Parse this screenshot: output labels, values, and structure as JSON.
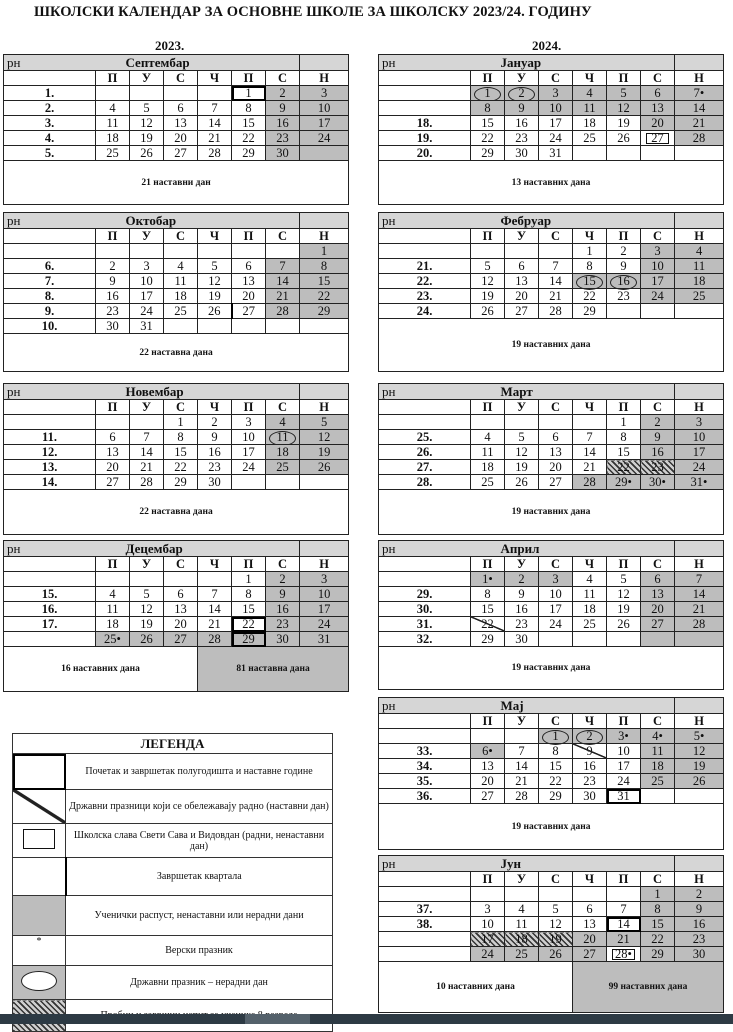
{
  "title": "ШКОЛСКИ КАЛЕНДАР ЗА ОСНОВНЕ ШКОЛЕ ЗА ШКОЛСКУ 2023/24. ГОДИНУ",
  "years": [
    "2023.",
    "2024."
  ],
  "rn_label": "рн",
  "weekdays": [
    "П",
    "У",
    "С",
    "Ч",
    "П",
    "С",
    "Н"
  ],
  "colors": {
    "non_teaching_gray": "#bdbdbd",
    "header_gray": "#d6d6d6"
  },
  "cell_codes": {
    "g": "Ученички распуст, ненаставни или нерадни дани",
    "c": "Државни празник – нерадни дан",
    "b": "Почетак и завршетак полугодишта и наставне године",
    "q": "Завршетак квартала",
    "s": "Државни празници који се обележавају радно",
    "h": "Пробни и завршни испит за ученике 8 разреда",
    "r": "Школска слава Свети Сава и Видовдан"
  },
  "months": [
    {
      "name": "Септембар",
      "weeks": [
        [
          "1.",
          "",
          "",
          "",
          "",
          "1|b",
          "2|g",
          "3|g"
        ],
        [
          "2.",
          "4",
          "5",
          "6",
          "7",
          "8",
          "9|g",
          "10|g"
        ],
        [
          "3.",
          "11",
          "12",
          "13",
          "14",
          "15",
          "16|g",
          "17|g"
        ],
        [
          "4.",
          "18",
          "19",
          "20",
          "21",
          "22",
          "23|g",
          "24|g"
        ],
        [
          "5.",
          "25",
          "26",
          "27",
          "28",
          "29",
          "30|g",
          "|g"
        ]
      ],
      "footer": [
        "21 наставни дан"
      ]
    },
    {
      "name": "Октобар",
      "weeks": [
        [
          "",
          "",
          "",
          "",
          "",
          "",
          "",
          "1|g"
        ],
        [
          "6.",
          "2",
          "3",
          "4",
          "5",
          "6",
          "7|g",
          "8|g"
        ],
        [
          "7.",
          "9",
          "10",
          "11",
          "12",
          "13",
          "14|g",
          "15|g"
        ],
        [
          "8.",
          "16",
          "17",
          "18",
          "19",
          "20",
          "21|g",
          "22|g"
        ],
        [
          "9.",
          "23",
          "24",
          "25",
          "26",
          "27|q",
          "28|g",
          "29|g"
        ],
        [
          "10.",
          "30",
          "31",
          "",
          "",
          "",
          "",
          ""
        ]
      ],
      "footer": [
        "22 наставна дана"
      ]
    },
    {
      "name": "Новембар",
      "weeks": [
        [
          "",
          "",
          "",
          "1",
          "2",
          "3",
          "4|g",
          "5|g"
        ],
        [
          "11.",
          "6",
          "7",
          "8",
          "9",
          "10",
          "11|gc",
          "12|g"
        ],
        [
          "12.",
          "13",
          "14",
          "15",
          "16",
          "17",
          "18|g",
          "19|g"
        ],
        [
          "13.",
          "20",
          "21",
          "22",
          "23",
          "24",
          "25|g",
          "26|g"
        ],
        [
          "14.",
          "27",
          "28",
          "29",
          "30",
          "",
          "",
          ""
        ]
      ],
      "footer": [
        "22 наставна дана"
      ]
    },
    {
      "name": "Децембар",
      "weeks": [
        [
          "",
          "",
          "",
          "",
          "",
          "1",
          "2|g",
          "3|g"
        ],
        [
          "15.",
          "4",
          "5",
          "6",
          "7",
          "8",
          "9|g",
          "10|g"
        ],
        [
          "16.",
          "11",
          "12",
          "13",
          "14",
          "15",
          "16|g",
          "17|g"
        ],
        [
          "17.",
          "18",
          "19",
          "20",
          "21",
          "22|b",
          "23|g",
          "24|g"
        ],
        [
          "",
          "25•|g",
          "26|g",
          "27|g",
          "28|g",
          "29|gb",
          "30|g",
          "31|g"
        ]
      ],
      "footer": [
        "16 наставних дана",
        "81 наставна дана"
      ]
    },
    {
      "name": "Јануар",
      "weeks": [
        [
          "",
          "1|gc",
          "2|gc",
          "3|g",
          "4|g",
          "5|g",
          "6|g",
          "7•|g"
        ],
        [
          "",
          "8|g",
          "9|g",
          "10|g",
          "11|g",
          "12|g",
          "13|g",
          "14|g"
        ],
        [
          "18.",
          "15",
          "16",
          "17",
          "18",
          "19",
          "20|g",
          "21|g"
        ],
        [
          "19.",
          "22",
          "23",
          "24",
          "25",
          "26",
          "27|r",
          "28|g"
        ],
        [
          "20.",
          "29",
          "30",
          "31",
          "",
          "",
          "",
          ""
        ]
      ],
      "footer": [
        "13 наставних дана"
      ]
    },
    {
      "name": "Фебруар",
      "weeks": [
        [
          "",
          "",
          "",
          "",
          "1",
          "2",
          "3|g",
          "4|g"
        ],
        [
          "21.",
          "5",
          "6",
          "7",
          "8",
          "9",
          "10|g",
          "11|g"
        ],
        [
          "22.",
          "12",
          "13",
          "14",
          "15|gc",
          "16|gc",
          "17|g",
          "18|g"
        ],
        [
          "23.",
          "19",
          "20",
          "21",
          "22",
          "23",
          "24|g",
          "25|g"
        ],
        [
          "24.",
          "26",
          "27",
          "28",
          "29",
          "",
          "",
          ""
        ]
      ],
      "footer": [
        "19 наставних дана"
      ]
    },
    {
      "name": "Март",
      "weeks": [
        [
          "",
          "",
          "",
          "",
          "",
          "1",
          "2|g",
          "3|g"
        ],
        [
          "25.",
          "4",
          "5",
          "6",
          "7",
          "8",
          "9|g",
          "10|g"
        ],
        [
          "26.",
          "11",
          "12",
          "13",
          "14",
          "15",
          "16|g",
          "17|g"
        ],
        [
          "27.",
          "18",
          "19",
          "20",
          "21",
          "22|h",
          "23|h",
          "24|g"
        ],
        [
          "28.",
          "25",
          "26",
          "27",
          "28|g",
          "29•|g",
          "30•|g",
          "31•|g"
        ]
      ],
      "footer": [
        "19 наставних дана"
      ]
    },
    {
      "name": "Април",
      "weeks": [
        [
          "",
          "1•|g",
          "2|g",
          "3|g",
          "4",
          "5",
          "6|g",
          "7|g"
        ],
        [
          "29.",
          "8",
          "9",
          "10",
          "11",
          "12",
          "13|g",
          "14|g"
        ],
        [
          "30.",
          "15",
          "16",
          "17",
          "18",
          "19",
          "20|g",
          "21|g"
        ],
        [
          "31.",
          "22|s",
          "23",
          "24",
          "25",
          "26",
          "27|g",
          "28|g"
        ],
        [
          "32.",
          "29",
          "30",
          "",
          "",
          "",
          "|g",
          "|g"
        ]
      ],
      "footer": [
        "19 наставних дана"
      ]
    },
    {
      "name": "Мај",
      "weeks": [
        [
          "",
          "",
          "",
          "1|gc",
          "2|gc",
          "3•|g",
          "4•|g",
          "5•|g"
        ],
        [
          "33.",
          "6•|g",
          "7",
          "8",
          "9|s",
          "10",
          "11|g",
          "12|g"
        ],
        [
          "34.",
          "13",
          "14",
          "15",
          "16",
          "17",
          "18|g",
          "19|g"
        ],
        [
          "35.",
          "20",
          "21",
          "22",
          "23",
          "24",
          "25|g",
          "26|g"
        ],
        [
          "36.",
          "27",
          "28",
          "29",
          "30",
          "31|b",
          "",
          ""
        ]
      ],
      "footer": [
        "19 наставних дана"
      ]
    },
    {
      "name": "Јун",
      "weeks": [
        [
          "",
          "",
          "",
          "",
          "",
          "",
          "1|g",
          "2|g"
        ],
        [
          "37.",
          "3",
          "4",
          "5",
          "6",
          "7",
          "8|g",
          "9|g"
        ],
        [
          "38.",
          "10",
          "11",
          "12",
          "13",
          "14|b",
          "15|g",
          "16|g"
        ],
        [
          "",
          "17|h",
          "18|h",
          "19|h",
          "20|g",
          "21|g",
          "22|g",
          "23|g"
        ],
        [
          "",
          "24|g",
          "25|g",
          "26|g",
          "27|g",
          "28•|r",
          "29|g",
          "30|g"
        ]
      ],
      "footer": [
        "10 наставних дана",
        "99 наставних дана"
      ]
    }
  ],
  "legend": {
    "title": "ЛЕГЕНДА",
    "items": [
      {
        "code": "b",
        "text": "Почетак и завршетак полугодишта и наставне године"
      },
      {
        "code": "s",
        "text": "Државни празници који се обележавају радно (наставни дан)"
      },
      {
        "code": "r",
        "text": "Школска слава Свети Сава и Видовдан (радни, ненаставни дан)"
      },
      {
        "code": "q",
        "text": "Завршетак квартала"
      },
      {
        "code": "g",
        "text": "Ученички распуст, ненаставни или нерадни дани"
      },
      {
        "code": "star",
        "symbol": "*",
        "text": "Верски празник"
      },
      {
        "code": "c",
        "text": "Државни празник – нерадни дан"
      },
      {
        "code": "h",
        "text": "Пробни и завршни испит за ученике 8 разреда"
      }
    ]
  }
}
